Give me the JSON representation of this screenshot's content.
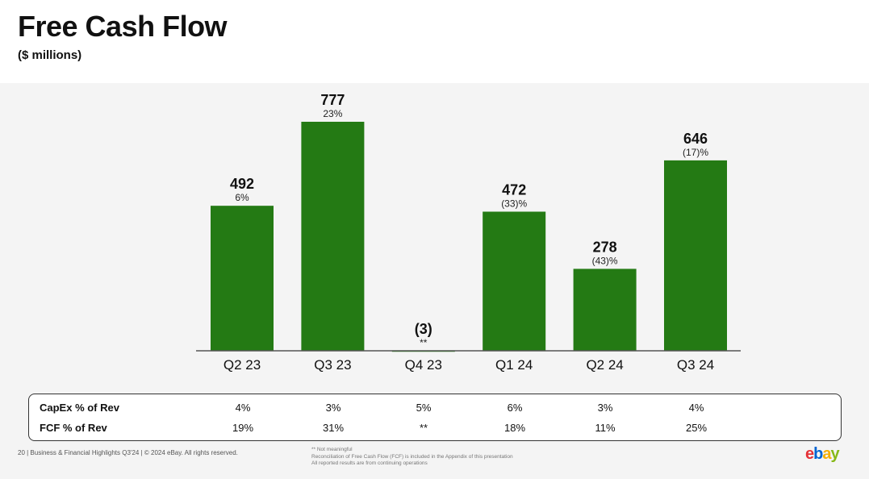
{
  "chart_data": {
    "type": "bar",
    "title": "Free Cash Flow",
    "subtitle": "($ millions)",
    "categories": [
      "Q2 23",
      "Q3 23",
      "Q4 23",
      "Q1 24",
      "Q2 24",
      "Q3 24"
    ],
    "values": [
      492,
      777,
      -3,
      472,
      278,
      646
    ],
    "value_labels": [
      "492",
      "777",
      "(3)",
      "472",
      "278",
      "646"
    ],
    "growth_labels": [
      "6%",
      "23%",
      "**",
      "(33)%",
      "(43)%",
      "(17)%"
    ],
    "ylim": [
      0,
      800
    ],
    "bar_color": "#247a14"
  },
  "table": {
    "rows": [
      {
        "label": "CapEx % of Rev",
        "values": [
          "4%",
          "3%",
          "5%",
          "6%",
          "3%",
          "4%"
        ]
      },
      {
        "label": "FCF % of Rev",
        "values": [
          "19%",
          "31%",
          "**",
          "18%",
          "11%",
          "25%"
        ]
      }
    ]
  },
  "footer": {
    "left": "20 | Business & Financial Highlights Q3'24 | © 2024 eBay. All rights reserved.",
    "notes": [
      "** Not meaningful",
      "Reconciliation of Free Cash Flow (FCF) is included in the Appendix of this presentation",
      "All reported results are from continuing operations"
    ]
  },
  "logo": {
    "e": "e",
    "b": "b",
    "a": "a",
    "y": "y"
  }
}
